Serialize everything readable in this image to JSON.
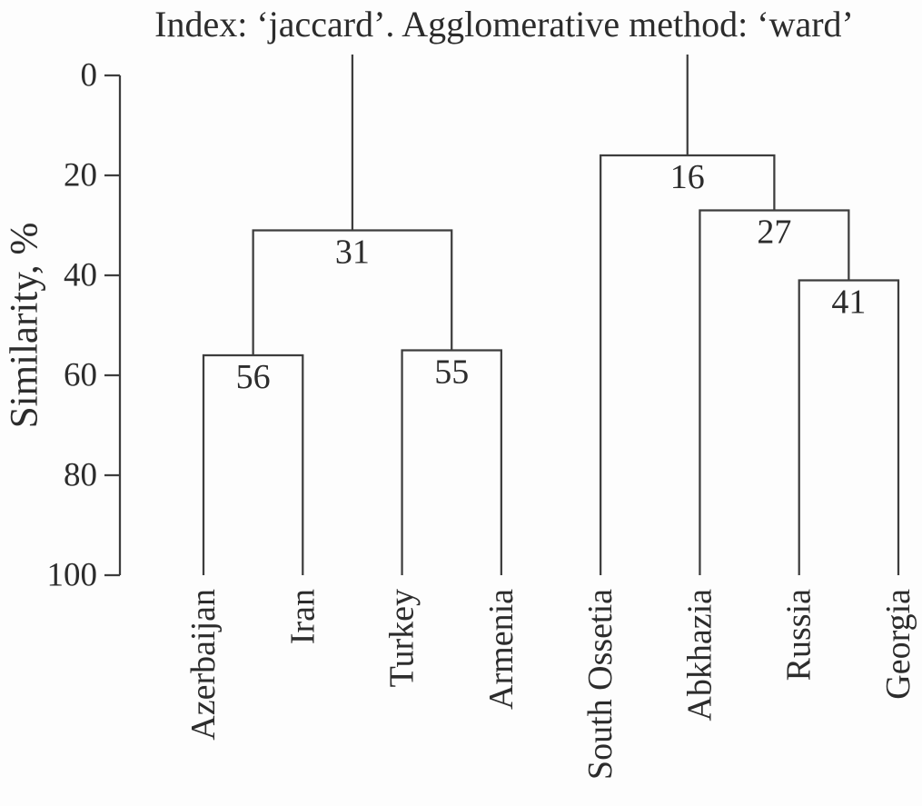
{
  "colors": {
    "line": "#3d3d3d",
    "text": "#2c2c2c",
    "background": "#fdfdfd"
  },
  "chart_data": {
    "type": "dendrogram",
    "title": "Index: ‘jaccard’. Agglomerative method: ‘ward’",
    "ylabel": "Similarity, %",
    "ylim": [
      0,
      100
    ],
    "yticks": [
      "0",
      "20",
      "40",
      "60",
      "80",
      "100"
    ],
    "ytick_values": [
      0,
      20,
      40,
      60,
      80,
      100
    ],
    "y_axis_inverted": true,
    "grid": false,
    "legend": false,
    "orientation": "top",
    "leaves": [
      "Azerbaijan",
      "Iran",
      "Turkey",
      "Armenia",
      "South Ossetia",
      "Abkhazia",
      "Russia",
      "Georgia"
    ],
    "merges": [
      {
        "id": "m56",
        "children": [
          "Azerbaijan",
          "Iran"
        ],
        "similarity_pct": 56,
        "label": "56"
      },
      {
        "id": "m55",
        "children": [
          "Turkey",
          "Armenia"
        ],
        "similarity_pct": 55,
        "label": "55"
      },
      {
        "id": "m31",
        "children": [
          "m56",
          "m55"
        ],
        "similarity_pct": 31,
        "label": "31"
      },
      {
        "id": "m41",
        "children": [
          "Russia",
          "Georgia"
        ],
        "similarity_pct": 41,
        "label": "41"
      },
      {
        "id": "m27",
        "children": [
          "Abkhazia",
          "m41"
        ],
        "similarity_pct": 27,
        "label": "27"
      },
      {
        "id": "m16",
        "children": [
          "South Ossetia",
          "m27"
        ],
        "similarity_pct": 16,
        "label": "16"
      }
    ],
    "roots": [
      "m31",
      "m16"
    ]
  }
}
